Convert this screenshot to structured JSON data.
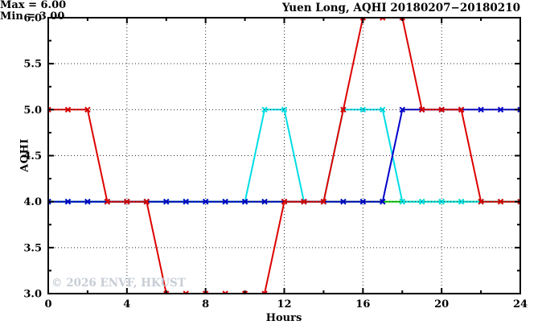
{
  "chart_data": {
    "type": "line",
    "title": "Yuen Long, AQHI 20180207−20180210",
    "xlabel": "Hours",
    "ylabel": "AQHI",
    "annotation": {
      "max": "Max = 6.00",
      "min": "Min = 3.00"
    },
    "watermark": "© 2026 ENVF, HKUST",
    "xlim": [
      0,
      24
    ],
    "ylim": [
      3,
      6
    ],
    "x_major_ticks": [
      0,
      4,
      8,
      12,
      16,
      20,
      24
    ],
    "x_tick_labels": [
      "0",
      "4",
      "8",
      "12",
      "16",
      "20",
      "24"
    ],
    "x_minor_ticks": [
      2,
      6,
      10,
      14,
      18,
      22
    ],
    "y_major_ticks": [
      3.0,
      3.5,
      4.0,
      4.5,
      5.0,
      5.5,
      6.0
    ],
    "y_tick_labels": [
      "3.0",
      "3.5",
      "4.0",
      "4.5",
      "5.0",
      "5.5",
      "6.0"
    ],
    "y_minor_ticks": [
      3.25,
      3.75,
      4.25,
      4.75,
      5.25,
      5.75
    ],
    "x_grid": [
      4,
      8,
      12,
      16,
      20
    ],
    "y_grid_under": [
      3.5,
      4.5,
      5.5
    ],
    "y_grid_over": [
      4.0,
      5.0
    ],
    "grid_color": "#2a2a2a",
    "axis_color": "#000000",
    "x": [
      0,
      1,
      2,
      3,
      4,
      5,
      6,
      7,
      8,
      9,
      10,
      11,
      12,
      13,
      14,
      15,
      16,
      17,
      18,
      19,
      20,
      21,
      22,
      23,
      24
    ],
    "series": [
      {
        "name": "series-green",
        "color": "#00cc00",
        "values": [
          4,
          4,
          4,
          4,
          4,
          4,
          4,
          4,
          4,
          4,
          4,
          4,
          4,
          4,
          4,
          4,
          4,
          4,
          4,
          4,
          4,
          4,
          4,
          4,
          4
        ]
      },
      {
        "name": "series-cyan",
        "color": "#00dde4",
        "values": [
          4,
          4,
          4,
          4,
          4,
          4,
          4,
          4,
          4,
          4,
          4,
          5,
          5,
          4,
          4,
          5,
          5,
          5,
          4,
          4,
          4,
          4,
          4,
          4,
          4
        ]
      },
      {
        "name": "series-blue",
        "color": "#0000cc",
        "values": [
          4,
          4,
          4,
          4,
          4,
          4,
          4,
          4,
          4,
          4,
          4,
          4,
          4,
          4,
          4,
          4,
          4,
          4,
          5,
          5,
          5,
          5,
          5,
          5,
          5
        ]
      },
      {
        "name": "series-red",
        "color": "#dd0000",
        "values": [
          5,
          5,
          5,
          4,
          4,
          4,
          3,
          3,
          3,
          3,
          3,
          3,
          4,
          4,
          4,
          5,
          6,
          6,
          6,
          5,
          5,
          5,
          4,
          4,
          4
        ]
      }
    ]
  }
}
